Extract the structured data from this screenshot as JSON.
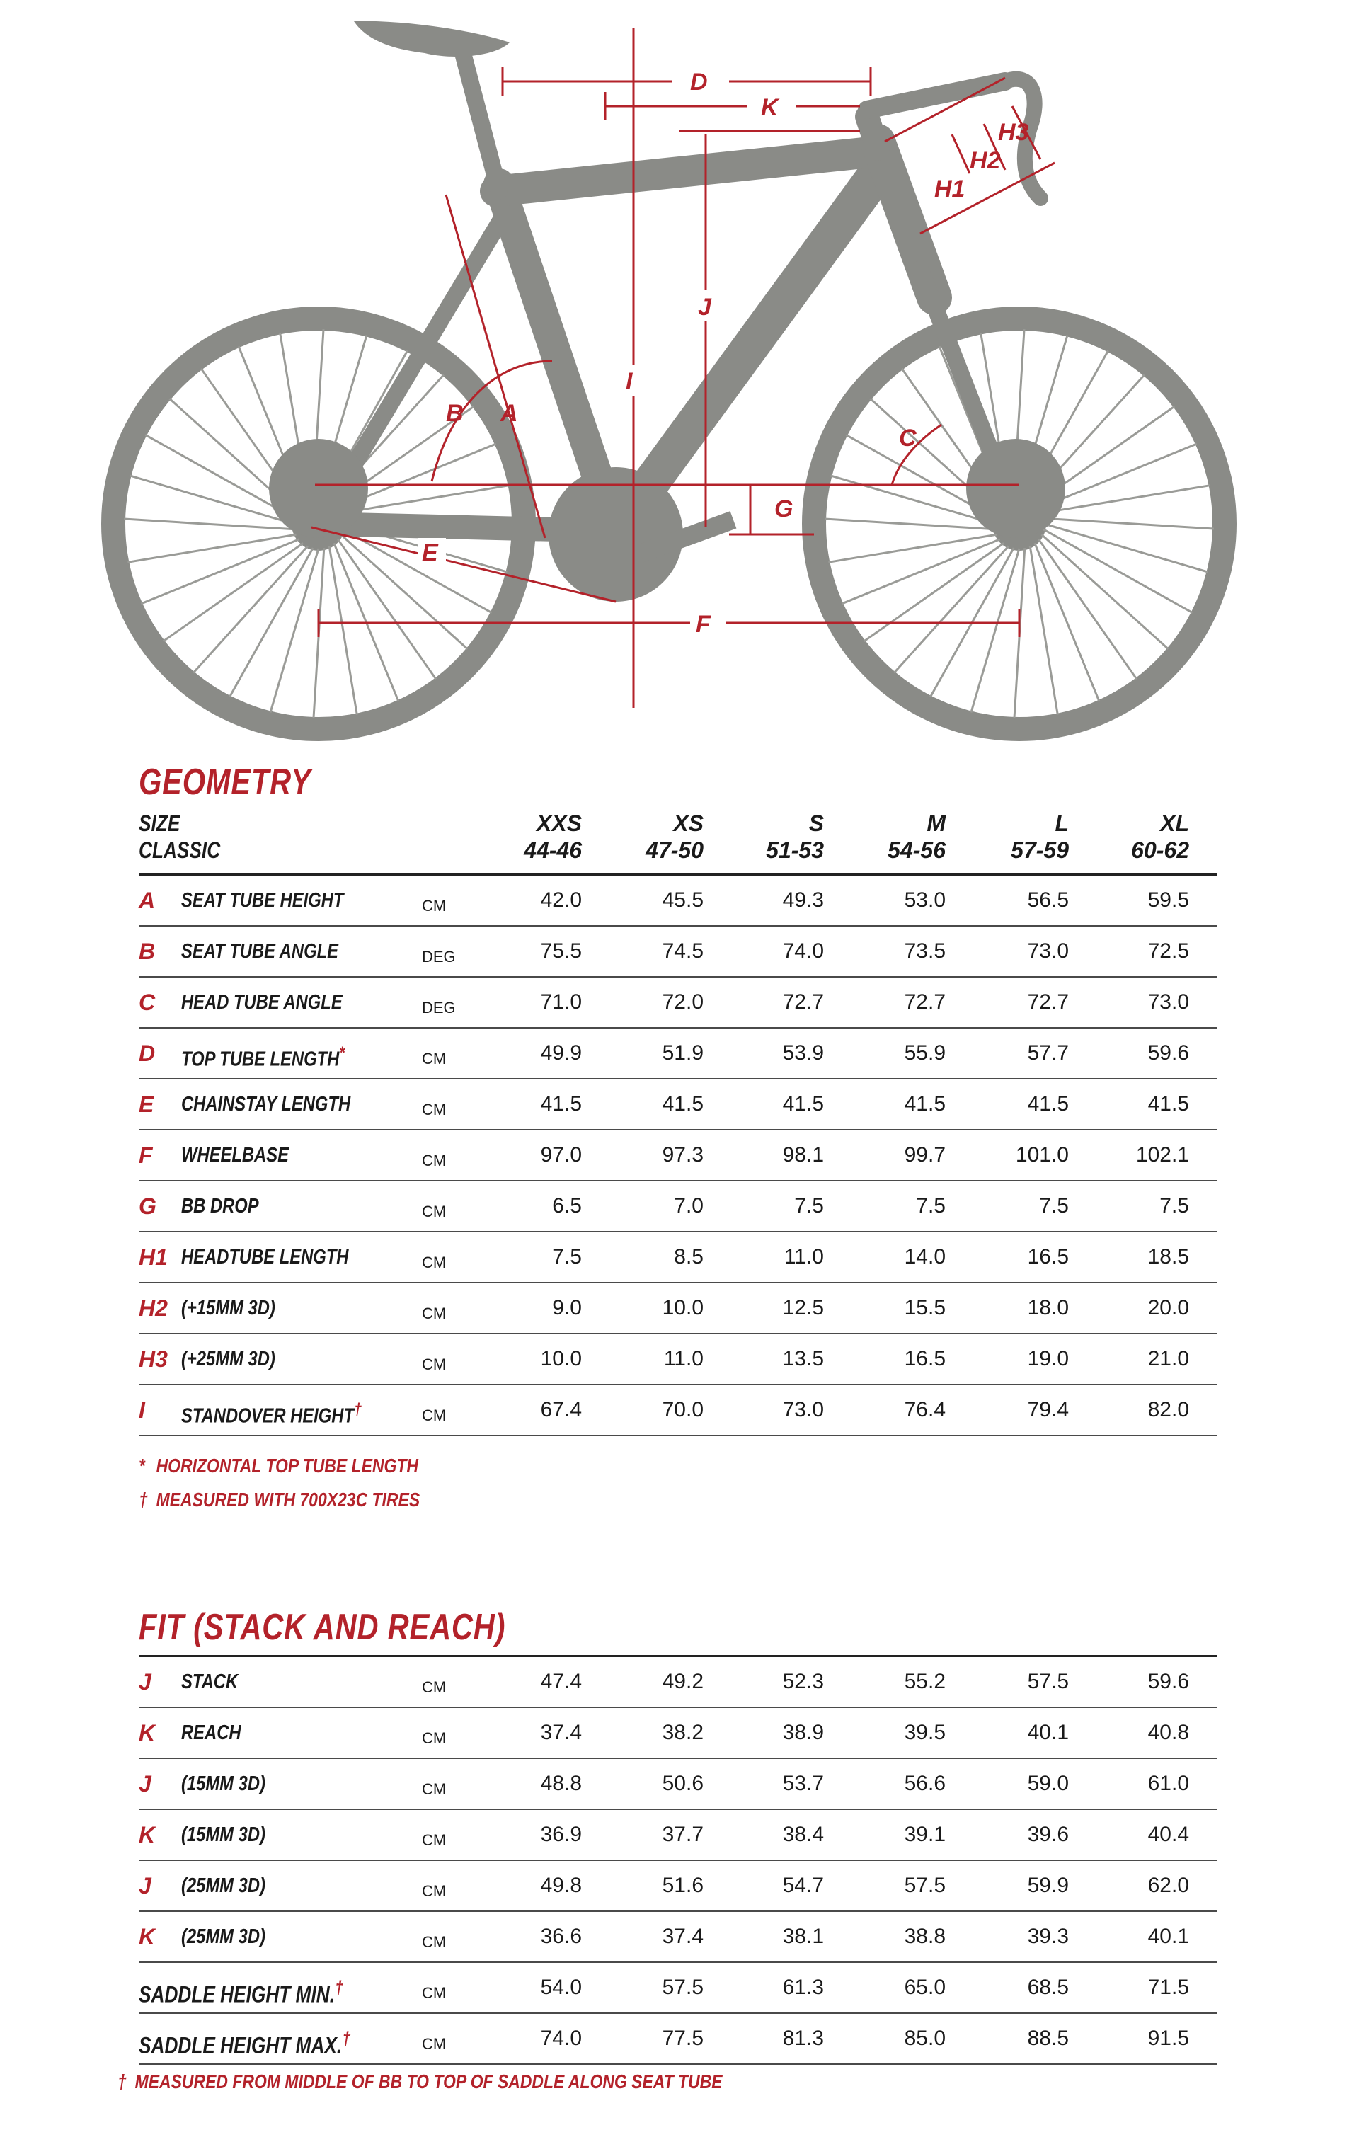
{
  "colors": {
    "accent": "#b3222a",
    "bike_grey": "#8a8b87",
    "rule": "#222222"
  },
  "diagram": {
    "labels": [
      "D",
      "K",
      "H3",
      "H2",
      "H1",
      "J",
      "I",
      "B",
      "A",
      "C",
      "G",
      "E",
      "F"
    ]
  },
  "geometry": {
    "title": "GEOMETRY",
    "size_label": "SIZE",
    "classic_label": "CLASSIC",
    "sizes": [
      {
        "name": "XXS",
        "range": "44-46"
      },
      {
        "name": "XS",
        "range": "47-50"
      },
      {
        "name": "S",
        "range": "51-53"
      },
      {
        "name": "M",
        "range": "54-56"
      },
      {
        "name": "L",
        "range": "57-59"
      },
      {
        "name": "XL",
        "range": "60-62"
      }
    ],
    "rows": [
      {
        "code": "A",
        "name": "SEAT TUBE HEIGHT",
        "mark": "",
        "unit": "CM",
        "values": [
          "42.0",
          "45.5",
          "49.3",
          "53.0",
          "56.5",
          "59.5"
        ]
      },
      {
        "code": "B",
        "name": "SEAT TUBE ANGLE",
        "mark": "",
        "unit": "DEG",
        "values": [
          "75.5",
          "74.5",
          "74.0",
          "73.5",
          "73.0",
          "72.5"
        ]
      },
      {
        "code": "C",
        "name": "HEAD TUBE ANGLE",
        "mark": "",
        "unit": "DEG",
        "values": [
          "71.0",
          "72.0",
          "72.7",
          "72.7",
          "72.7",
          "73.0"
        ]
      },
      {
        "code": "D",
        "name": "TOP TUBE LENGTH",
        "mark": "*",
        "unit": "CM",
        "values": [
          "49.9",
          "51.9",
          "53.9",
          "55.9",
          "57.7",
          "59.6"
        ]
      },
      {
        "code": "E",
        "name": "CHAINSTAY LENGTH",
        "mark": "",
        "unit": "CM",
        "values": [
          "41.5",
          "41.5",
          "41.5",
          "41.5",
          "41.5",
          "41.5"
        ]
      },
      {
        "code": "F",
        "name": "WHEELBASE",
        "mark": "",
        "unit": "CM",
        "values": [
          "97.0",
          "97.3",
          "98.1",
          "99.7",
          "101.0",
          "102.1"
        ]
      },
      {
        "code": "G",
        "name": "BB DROP",
        "mark": "",
        "unit": "CM",
        "values": [
          "6.5",
          "7.0",
          "7.5",
          "7.5",
          "7.5",
          "7.5"
        ]
      },
      {
        "code": "H1",
        "name": "HEADTUBE LENGTH",
        "mark": "",
        "unit": "CM",
        "values": [
          "7.5",
          "8.5",
          "11.0",
          "14.0",
          "16.5",
          "18.5"
        ]
      },
      {
        "code": "H2",
        "name": "(+15MM 3D)",
        "mark": "",
        "unit": "CM",
        "values": [
          "9.0",
          "10.0",
          "12.5",
          "15.5",
          "18.0",
          "20.0"
        ]
      },
      {
        "code": "H3",
        "name": "(+25MM 3D)",
        "mark": "",
        "unit": "CM",
        "values": [
          "10.0",
          "11.0",
          "13.5",
          "16.5",
          "19.0",
          "21.0"
        ]
      },
      {
        "code": "I",
        "name": "STANDOVER HEIGHT",
        "mark": "†",
        "unit": "CM",
        "values": [
          "67.4",
          "70.0",
          "73.0",
          "76.4",
          "79.4",
          "82.0"
        ]
      }
    ],
    "notes": [
      {
        "mark": "*",
        "text": "HORIZONTAL TOP TUBE LENGTH"
      },
      {
        "mark": "†",
        "text": "MEASURED WITH 700X23C TIRES"
      }
    ]
  },
  "fit": {
    "title": "FIT (STACK AND REACH)",
    "rows": [
      {
        "code": "J",
        "name": "STACK",
        "mark": "",
        "unit": "CM",
        "values": [
          "47.4",
          "49.2",
          "52.3",
          "55.2",
          "57.5",
          "59.6"
        ]
      },
      {
        "code": "K",
        "name": "REACH",
        "mark": "",
        "unit": "CM",
        "values": [
          "37.4",
          "38.2",
          "38.9",
          "39.5",
          "40.1",
          "40.8"
        ]
      },
      {
        "code": "J",
        "name": "(15MM 3D)",
        "mark": "",
        "unit": "CM",
        "values": [
          "48.8",
          "50.6",
          "53.7",
          "56.6",
          "59.0",
          "61.0"
        ]
      },
      {
        "code": "K",
        "name": "(15MM 3D)",
        "mark": "",
        "unit": "CM",
        "values": [
          "36.9",
          "37.7",
          "38.4",
          "39.1",
          "39.6",
          "40.4"
        ]
      },
      {
        "code": "J",
        "name": "(25MM 3D)",
        "mark": "",
        "unit": "CM",
        "values": [
          "49.8",
          "51.6",
          "54.7",
          "57.5",
          "59.9",
          "62.0"
        ]
      },
      {
        "code": "K",
        "name": "(25MM 3D)",
        "mark": "",
        "unit": "CM",
        "values": [
          "36.6",
          "37.4",
          "38.1",
          "38.8",
          "39.3",
          "40.1"
        ]
      },
      {
        "code": "",
        "name": "SADDLE HEIGHT MIN.",
        "mark": "†",
        "unit": "CM",
        "values": [
          "54.0",
          "57.5",
          "61.3",
          "65.0",
          "68.5",
          "71.5"
        ]
      },
      {
        "code": "",
        "name": "SADDLE HEIGHT MAX.",
        "mark": "†",
        "unit": "CM",
        "values": [
          "74.0",
          "77.5",
          "81.3",
          "85.0",
          "88.5",
          "91.5"
        ]
      }
    ],
    "note": {
      "mark": "†",
      "text": "MEASURED FROM MIDDLE OF BB TO TOP OF SADDLE ALONG SEAT TUBE"
    }
  }
}
